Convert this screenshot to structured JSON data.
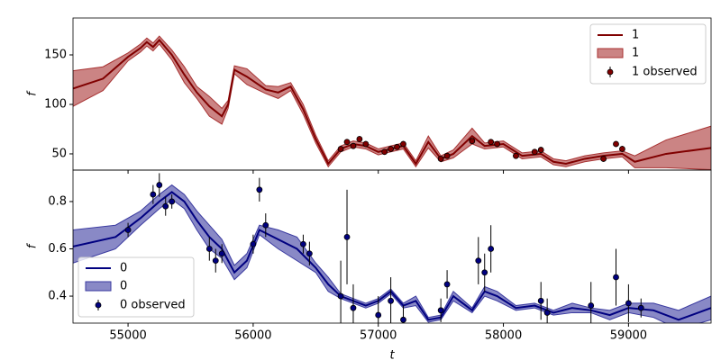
{
  "chart_data": [
    {
      "type": "line",
      "ylabel": "f",
      "legend": "upper right",
      "xlim": [
        54560,
        59660
      ],
      "xticks": [
        55000,
        56000,
        57000,
        58000,
        59000
      ],
      "ylim": [
        33.6,
        187.3
      ],
      "yticks": [
        50,
        100,
        150
      ],
      "x": [
        54560,
        54800,
        55000,
        55100,
        55150,
        55200,
        55250,
        55350,
        55450,
        55550,
        55650,
        55750,
        55800,
        55850,
        55950,
        56100,
        56200,
        56300,
        56400,
        56500,
        56600,
        56700,
        56800,
        56900,
        57000,
        57100,
        57200,
        57300,
        57400,
        57500,
        57600,
        57750,
        57850,
        58000,
        58150,
        58300,
        58400,
        58500,
        58650,
        58800,
        58950,
        59050,
        59300,
        59660
      ],
      "series": [
        {
          "name": "1",
          "color": "#800000",
          "values": [
            116,
            126,
            148,
            157,
            163,
            158,
            165,
            150,
            130,
            112,
            98,
            88,
            100,
            135,
            128,
            115,
            112,
            118,
            95,
            65,
            40,
            55,
            60,
            58,
            52,
            55,
            58,
            40,
            62,
            45,
            50,
            68,
            58,
            60,
            48,
            50,
            42,
            40,
            45,
            48,
            50,
            42,
            50,
            56
          ]
        }
      ],
      "band": {
        "name": "1",
        "color": "#a83232",
        "lower": [
          98,
          114,
          144,
          153,
          159,
          154,
          161,
          145,
          122,
          106,
          88,
          80,
          96,
          131,
          120,
          111,
          106,
          114,
          90,
          61,
          37,
          52,
          57,
          55,
          49,
          52,
          55,
          37,
          56,
          42,
          46,
          60,
          55,
          57,
          45,
          47,
          39,
          37,
          42,
          45,
          47,
          36,
          36,
          34
        ],
        "upper": [
          134,
          138,
          152,
          161,
          167,
          162,
          169,
          155,
          138,
          118,
          108,
          96,
          104,
          139,
          136,
          119,
          118,
          122,
          100,
          69,
          43,
          58,
          63,
          61,
          55,
          58,
          61,
          43,
          68,
          48,
          54,
          76,
          61,
          63,
          51,
          53,
          45,
          43,
          48,
          51,
          53,
          48,
          64,
          78
        ]
      },
      "observed": {
        "name": "1 observed",
        "color": "#800000",
        "x": [
          56700,
          56750,
          56800,
          56850,
          56900,
          57050,
          57100,
          57150,
          57200,
          57500,
          57550,
          57750,
          57900,
          57950,
          58100,
          58250,
          58300,
          58800,
          58900,
          58950
        ],
        "values": [
          55,
          62,
          58,
          65,
          60,
          52,
          55,
          57,
          60,
          45,
          48,
          63,
          62,
          60,
          48,
          52,
          54,
          45,
          60,
          55
        ],
        "errors": [
          3,
          3,
          3,
          3,
          3,
          3,
          3,
          3,
          3,
          3,
          3,
          3,
          3,
          3,
          3,
          3,
          3,
          3,
          3,
          3
        ]
      }
    },
    {
      "type": "line",
      "ylabel": "f",
      "xlabel": "t",
      "legend": "lower left",
      "xlim": [
        54560,
        59660
      ],
      "xticks": [
        55000,
        56000,
        57000,
        58000,
        59000
      ],
      "ylim": [
        0.286,
        0.933
      ],
      "yticks": [
        0.4,
        0.6,
        0.8
      ],
      "x": [
        54560,
        54900,
        55100,
        55250,
        55350,
        55450,
        55550,
        55650,
        55750,
        55850,
        55950,
        56050,
        56200,
        56350,
        56500,
        56600,
        56700,
        56800,
        56900,
        57000,
        57100,
        57200,
        57300,
        57400,
        57500,
        57600,
        57750,
        57850,
        57950,
        58100,
        58250,
        58400,
        58550,
        58700,
        58850,
        59000,
        59200,
        59400,
        59660
      ],
      "series": [
        {
          "name": "0",
          "color": "#000080",
          "values": [
            0.61,
            0.65,
            0.73,
            0.8,
            0.84,
            0.8,
            0.72,
            0.65,
            0.6,
            0.5,
            0.55,
            0.68,
            0.64,
            0.6,
            0.52,
            0.45,
            0.4,
            0.38,
            0.36,
            0.38,
            0.42,
            0.36,
            0.38,
            0.3,
            0.31,
            0.4,
            0.34,
            0.42,
            0.4,
            0.35,
            0.36,
            0.33,
            0.35,
            0.34,
            0.32,
            0.35,
            0.34,
            0.3,
            0.35
          ]
        }
      ],
      "band": {
        "name": "0",
        "color": "#3a3aa0",
        "lower": [
          0.54,
          0.6,
          0.7,
          0.77,
          0.81,
          0.77,
          0.68,
          0.6,
          0.56,
          0.47,
          0.52,
          0.66,
          0.6,
          0.55,
          0.5,
          0.42,
          0.39,
          0.37,
          0.35,
          0.37,
          0.41,
          0.35,
          0.36,
          0.29,
          0.3,
          0.38,
          0.33,
          0.4,
          0.38,
          0.34,
          0.35,
          0.32,
          0.33,
          0.33,
          0.3,
          0.33,
          0.31,
          0.26,
          0.3
        ],
        "upper": [
          0.68,
          0.7,
          0.76,
          0.83,
          0.87,
          0.83,
          0.76,
          0.7,
          0.64,
          0.53,
          0.58,
          0.7,
          0.68,
          0.65,
          0.54,
          0.48,
          0.41,
          0.39,
          0.37,
          0.39,
          0.43,
          0.37,
          0.4,
          0.31,
          0.32,
          0.42,
          0.35,
          0.44,
          0.42,
          0.36,
          0.37,
          0.34,
          0.37,
          0.35,
          0.34,
          0.37,
          0.37,
          0.34,
          0.4
        ]
      },
      "observed": {
        "name": "0 observed",
        "color": "#000080",
        "x": [
          55000,
          55200,
          55250,
          55300,
          55350,
          55650,
          55700,
          55750,
          56000,
          56050,
          56100,
          56400,
          56450,
          56700,
          56750,
          56800,
          57000,
          57100,
          57200,
          57500,
          57550,
          57800,
          57850,
          57900,
          58300,
          58350,
          58700,
          58900,
          59000,
          59100
        ],
        "values": [
          0.68,
          0.83,
          0.87,
          0.78,
          0.8,
          0.6,
          0.55,
          0.58,
          0.62,
          0.85,
          0.7,
          0.62,
          0.58,
          0.4,
          0.65,
          0.35,
          0.32,
          0.38,
          0.3,
          0.34,
          0.45,
          0.55,
          0.5,
          0.6,
          0.38,
          0.33,
          0.36,
          0.48,
          0.37,
          0.35
        ],
        "errors": [
          0.03,
          0.04,
          0.05,
          0.04,
          0.03,
          0.05,
          0.05,
          0.04,
          0.04,
          0.05,
          0.05,
          0.04,
          0.05,
          0.15,
          0.2,
          0.1,
          0.08,
          0.1,
          0.06,
          0.05,
          0.06,
          0.1,
          0.08,
          0.1,
          0.08,
          0.06,
          0.1,
          0.12,
          0.08,
          0.04
        ]
      }
    }
  ]
}
